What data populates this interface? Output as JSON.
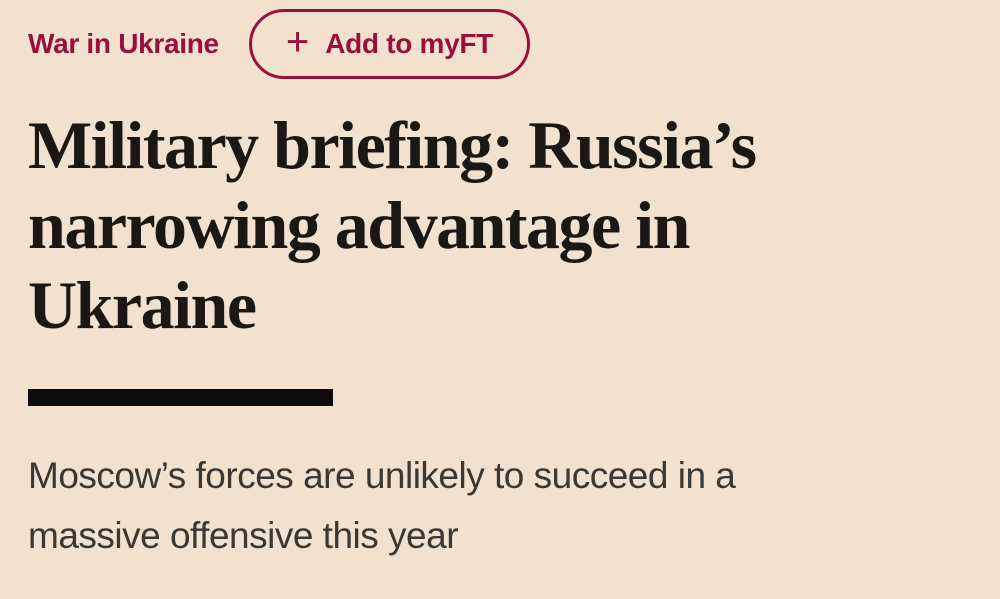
{
  "page": {
    "background_color": "#F2E1CF",
    "accent_color": "#990F3D",
    "headline_color": "#1B1713",
    "subtitle_color": "#3B3733",
    "divider_color": "#0E0C0A"
  },
  "kicker": {
    "label": "War in Ukraine"
  },
  "myft_button": {
    "plus": "+",
    "label": "Add to myFT"
  },
  "headline": {
    "text": "Military briefing: Russia’s narrowing advantage in Ukraine",
    "lines": [
      "Military briefing: Russia’s",
      "narrowing advantage in",
      "Ukraine"
    ]
  },
  "standfirst": {
    "text": "Moscow’s forces are unlikely to succeed in a massive offensive this year",
    "lines": [
      "Moscow’s forces are unlikely to succeed in a",
      "massive offensive this year"
    ]
  }
}
